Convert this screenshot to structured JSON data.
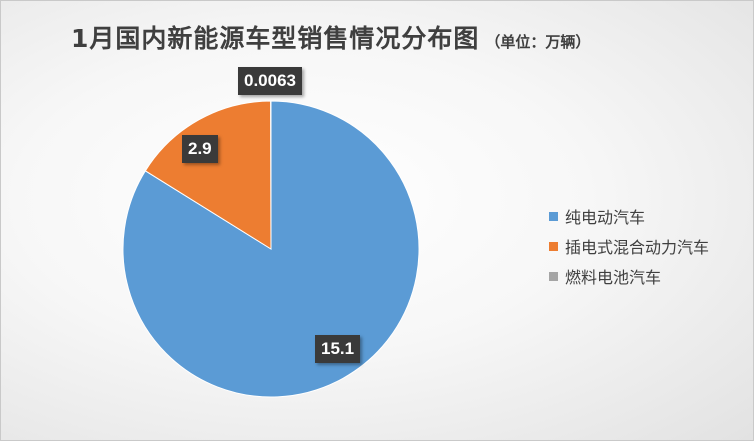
{
  "chart_data": {
    "type": "pie",
    "title": "1月国内新能源车型销售情况分布图",
    "unit_note": "（单位：万辆）",
    "series": [
      {
        "name": "纯电动汽车",
        "value": 15.1,
        "label": "15.1",
        "color": "#5b9bd5"
      },
      {
        "name": "插电式混合动力汽车",
        "value": 2.9,
        "label": "2.9",
        "color": "#ed7d31"
      },
      {
        "name": "燃料电池汽车",
        "value": 0.0063,
        "label": "0.0063",
        "color": "#a5a5a5"
      }
    ],
    "legend_position": "right"
  }
}
